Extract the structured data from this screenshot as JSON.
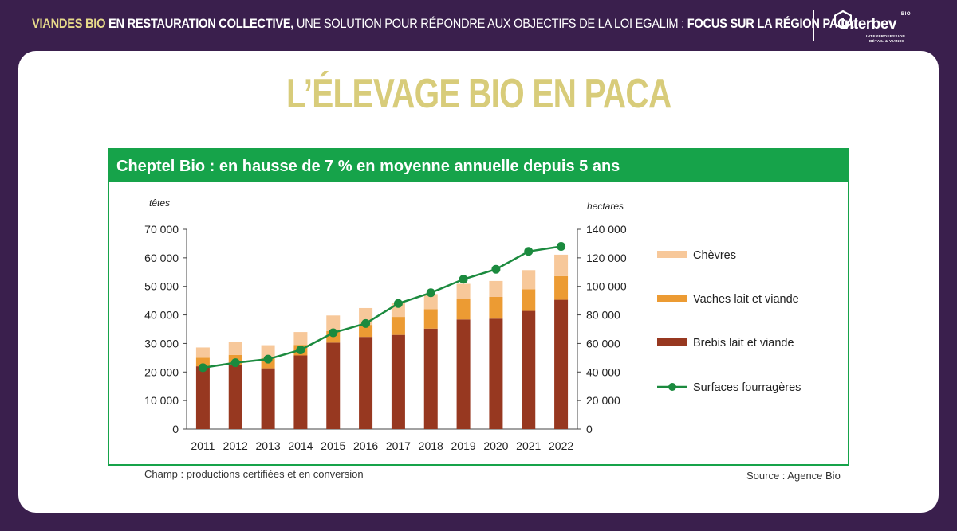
{
  "headline": {
    "part1": "VIANDES BIO",
    "part2": " EN RESTAURATION COLLECTIVE,",
    "part3": " UNE SOLUTION POUR RÉPONDRE AUX OBJECTIFS DE LA LOI EGALIM : ",
    "part4": "FOCUS SUR LA RÉGION PACA"
  },
  "logo": {
    "name": "interbev",
    "bio": "BIO",
    "sub1": "INTERPROFESSION",
    "sub2": "BÉTAIL & VIANDE"
  },
  "page_title": "L’ÉLEVAGE BIO EN PACA",
  "figure": {
    "header": "Cheptel Bio : en hausse de 7 % en moyenne annuelle depuis 5 ans",
    "note": "Champ : productions certifiées et en conversion",
    "source": "Source : Agence Bio"
  },
  "colors": {
    "background": "#3a1f4d",
    "gold": "#d8cc7a",
    "green": "#16a34a",
    "brebis": "#973820",
    "vaches": "#ec9b33",
    "chevres": "#f7c89a",
    "line": "#1b8a3e"
  },
  "chart_data": {
    "type": "bar",
    "stacked": true,
    "categories": [
      "2011",
      "2012",
      "2013",
      "2014",
      "2015",
      "2016",
      "2017",
      "2018",
      "2019",
      "2020",
      "2021",
      "2022"
    ],
    "ylabel": "têtes",
    "y2label": "hectares",
    "ylim": [
      0,
      70000
    ],
    "y2lim": [
      0,
      140000
    ],
    "yticks": [
      "0",
      "10 000",
      "20 000",
      "30 000",
      "40 000",
      "50 000",
      "60 000",
      "70 000"
    ],
    "y2ticks": [
      "0",
      "20 000",
      "40 000",
      "60 000",
      "80 000",
      "100 000",
      "120 000",
      "140 000"
    ],
    "series": [
      {
        "name": "Brebis lait et viande",
        "values": [
          22000,
          22500,
          21300,
          25800,
          30300,
          32300,
          33000,
          35200,
          38400,
          38700,
          41400,
          45300
        ]
      },
      {
        "name": "Vaches lait et viande",
        "values": [
          3000,
          3500,
          3500,
          3700,
          4000,
          4200,
          6300,
          6800,
          7300,
          7600,
          7600,
          8300
        ]
      },
      {
        "name": "Chèvres",
        "values": [
          3600,
          4500,
          4600,
          4500,
          5500,
          5900,
          5000,
          5300,
          5200,
          5600,
          6700,
          7500
        ]
      }
    ],
    "line": {
      "name": "Surfaces fourragères",
      "axis": "right",
      "values": [
        43000,
        46500,
        49000,
        55500,
        67500,
        74000,
        88000,
        95500,
        105000,
        112000,
        124500,
        128000
      ]
    },
    "legend": [
      "Chèvres",
      "Vaches lait et viande",
      "Brebis lait et viande",
      "Surfaces fourragères"
    ]
  }
}
